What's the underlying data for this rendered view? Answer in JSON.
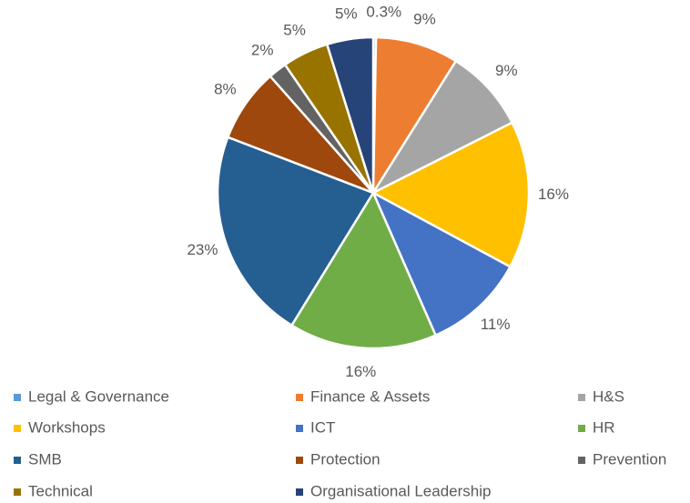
{
  "chart_data": {
    "type": "pie",
    "categories": [
      "Legal & Governance",
      "Finance & Assets",
      "H&S",
      "Workshops",
      "ICT",
      "HR",
      "SMB",
      "Protection",
      "Prevention",
      "Technical",
      "Organisational Leadership"
    ],
    "values": [
      0.3,
      9,
      9,
      16,
      11,
      16,
      23,
      8,
      2,
      5,
      5
    ],
    "value_labels": [
      "0.3%",
      "9%",
      "9%",
      "16%",
      "11%",
      "16%",
      "23%",
      "8%",
      "2%",
      "5%",
      "5%"
    ],
    "colors": [
      "#5b9bd5",
      "#ed7d31",
      "#a5a5a5",
      "#ffc000",
      "#4472c4",
      "#70ad47",
      "#255e91",
      "#9e480e",
      "#636363",
      "#997300",
      "#264478"
    ],
    "legend": "bottom"
  }
}
